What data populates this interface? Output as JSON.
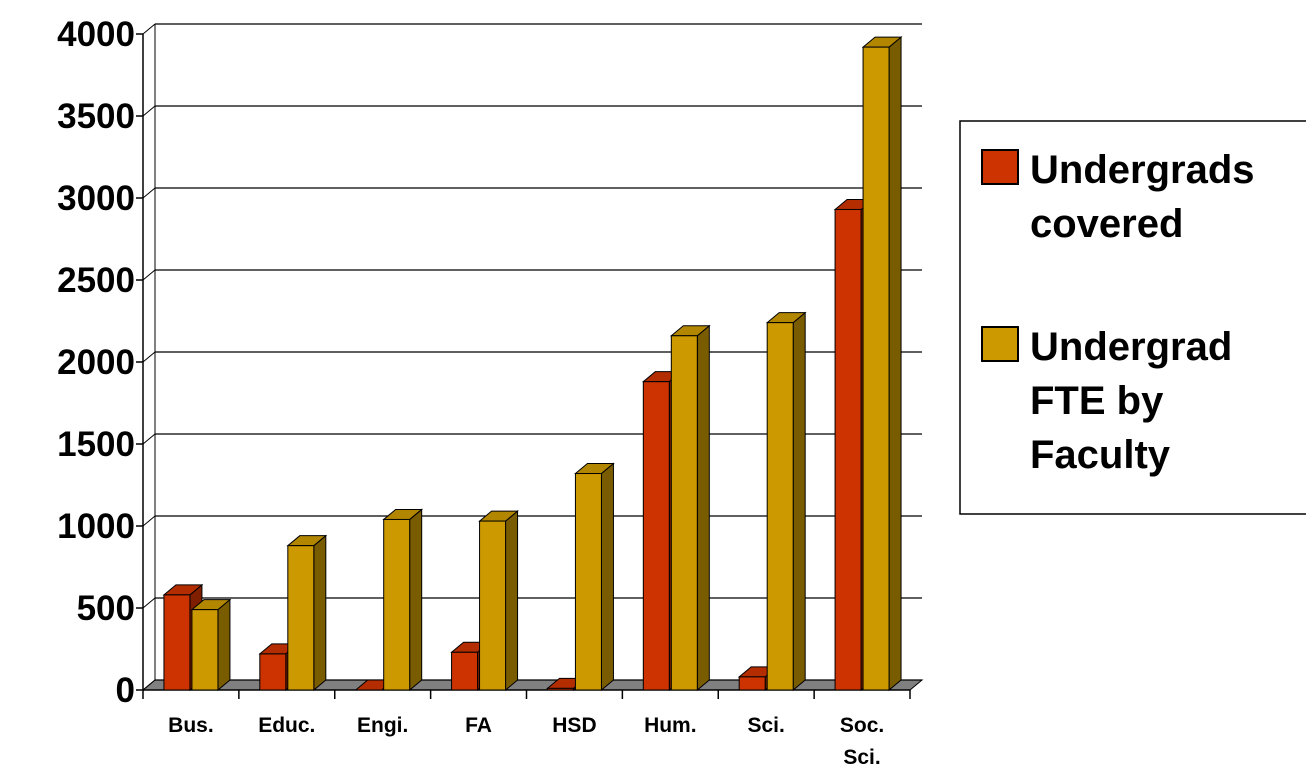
{
  "chart_data": {
    "type": "bar",
    "title": "",
    "xlabel": "",
    "ylabel": "",
    "ylim": [
      0,
      4000
    ],
    "yticks": [
      "0",
      "500",
      "1000",
      "1500",
      "2000",
      "2500",
      "3000",
      "3500",
      "4000"
    ],
    "categories": [
      [
        "Bus."
      ],
      [
        "Educ."
      ],
      [
        "Engi."
      ],
      [
        "FA"
      ],
      [
        "HSD"
      ],
      [
        "Hum."
      ],
      [
        "Sci."
      ],
      [
        "Soc.",
        "Sci."
      ]
    ],
    "series": [
      {
        "name": [
          "Undergrads",
          "covered"
        ],
        "color": "#cc3300",
        "side": "#801f00",
        "top": "#b32d00",
        "values": [
          580,
          220,
          0,
          230,
          10,
          1880,
          80,
          2930
        ]
      },
      {
        "name": [
          "Undergrad",
          "FTE by",
          "Faculty"
        ],
        "color": "#cc9900",
        "side": "#7a5c00",
        "top": "#b38600",
        "values": [
          490,
          880,
          1040,
          1030,
          1320,
          2160,
          2240,
          3920
        ]
      }
    ],
    "grid": true,
    "legend_position": "right",
    "style": "3d-clustered-column"
  }
}
